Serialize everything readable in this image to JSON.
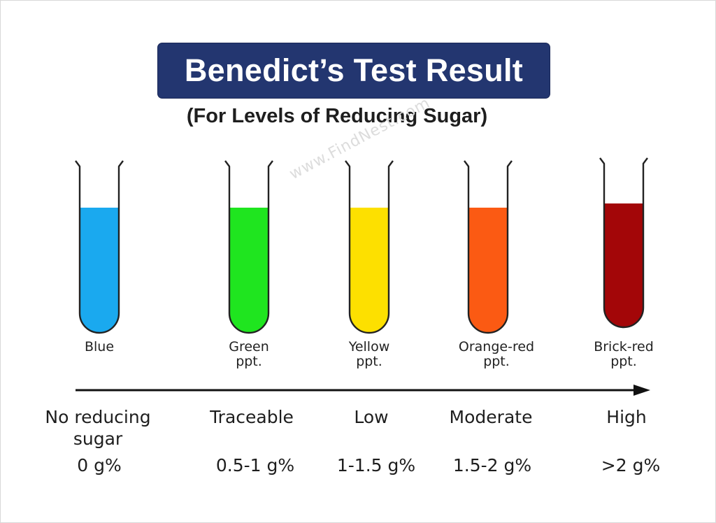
{
  "title": "Benedict’s Test Result",
  "subtitle": "(For Levels of Reducing Sugar)",
  "watermark": "www.FindNest.com",
  "tubes": [
    {
      "color": "#1aa9ef",
      "label_line1": "Blue",
      "label_line2": ""
    },
    {
      "color": "#1fe51f",
      "label_line1": "Green",
      "label_line2": "ppt."
    },
    {
      "color": "#fde000",
      "label_line1": "Yellow",
      "label_line2": "ppt."
    },
    {
      "color": "#fb5a13",
      "label_line1": "Orange-red",
      "label_line2": "ppt."
    },
    {
      "color": "#a30608",
      "label_line1": "Brick-red",
      "label_line2": "ppt."
    }
  ],
  "levels": [
    {
      "name_line1": "No reducing",
      "name_line2": "sugar",
      "amount": "0 g%"
    },
    {
      "name_line1": "Traceable",
      "name_line2": "",
      "amount": "0.5-1 g%"
    },
    {
      "name_line1": "Low",
      "name_line2": "",
      "amount": "1-1.5 g%"
    },
    {
      "name_line1": "Moderate",
      "name_line2": "",
      "amount": "1.5-2 g%"
    },
    {
      "name_line1": "High",
      "name_line2": "",
      "amount": ">2 g%"
    }
  ]
}
